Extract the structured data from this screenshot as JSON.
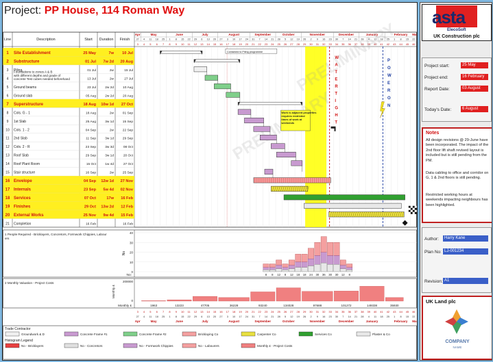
{
  "project": {
    "label": "Project:",
    "name": "PP House, 114 Roman Way"
  },
  "columns": {
    "line": "Line",
    "description": "Description",
    "start": "Start",
    "duration": "Duration",
    "finish": "Finish"
  },
  "months_top": [
    "Apr",
    "May",
    "June",
    "July",
    "August",
    "September",
    "October",
    "November",
    "December",
    "January",
    "February",
    "March"
  ],
  "weeks_top": [
    "3",
    "4",
    "5",
    "6",
    "7",
    "8",
    "9",
    "10",
    "11",
    "12",
    "13",
    "14",
    "15",
    "16",
    "17",
    "18",
    "19",
    "20",
    "21",
    "22",
    "23",
    "24",
    "25",
    "26",
    "27",
    "28",
    "29",
    "30",
    "31",
    "32",
    "33",
    "34",
    "35",
    "36",
    "37",
    "38",
    "39",
    "40",
    "41",
    "42",
    "43",
    "44",
    "45",
    "46"
  ],
  "weeks_bottom": [
    "3",
    "4",
    "5",
    "6",
    "7",
    "8",
    "9",
    "10",
    "11",
    "12",
    "13",
    "14",
    "15",
    "16",
    "17",
    "18",
    "19",
    "20",
    "21",
    "22",
    "23",
    "24",
    "25",
    "26",
    "27",
    "28",
    "29",
    "30",
    "31",
    "32",
    "33",
    "34",
    "35",
    "36",
    "37",
    "38",
    "39",
    "40",
    "41",
    "42",
    "43",
    "44",
    "45",
    "46"
  ],
  "months_bottom": [
    "Apr",
    "May",
    "June",
    "July",
    "August",
    "September",
    "October",
    "November",
    "December",
    "January",
    "February",
    "March"
  ],
  "chart_data": {
    "type": "gantt",
    "tasks": [
      {
        "line": "1",
        "desc": "Site Establishment",
        "start": "25 May",
        "dur": "7w",
        "finish": "10 Jul",
        "summary": true
      },
      {
        "line": "2",
        "desc": "Substructure",
        "start": "01 Jul",
        "dur": "7w 2d",
        "finish": "20 Aug",
        "summary": true
      },
      {
        "line": "3",
        "desc": "Piling",
        "start": "01 Jul",
        "dur": "2w",
        "finish": "15 Jul",
        "summary": false
      },
      {
        "line": "4",
        "desc": "Foundations to zones A & B with different depths and grade of concrete Test cubes needed beforehand",
        "start": "13 Jul",
        "dur": "2w",
        "finish": "27 Jul",
        "summary": false
      },
      {
        "line": "5",
        "desc": "Ground beams",
        "start": "23 Jul",
        "dur": "2w 2d",
        "finish": "10 Aug",
        "summary": false
      },
      {
        "line": "6",
        "desc": "Ground slab",
        "start": "05 Aug",
        "dur": "2w 2d",
        "finish": "20 Aug",
        "summary": false
      },
      {
        "line": "7",
        "desc": "Superstructure",
        "start": "18 Aug",
        "dur": "10w 1d",
        "finish": "27 Oct",
        "summary": true
      },
      {
        "line": "8",
        "desc": "Cols. G - 1",
        "start": "18 Aug",
        "dur": "2w",
        "finish": "01 Sep",
        "summary": false
      },
      {
        "line": "9",
        "desc": "1st Slab",
        "start": "25 Aug",
        "dur": "3w 1d",
        "finish": "15 Sep",
        "summary": false
      },
      {
        "line": "10",
        "desc": "Cols. 1 - 2",
        "start": "04 Sep",
        "dur": "2w",
        "finish": "22 Sep",
        "summary": false
      },
      {
        "line": "11",
        "desc": "2nd Slab",
        "start": "11 Sep",
        "dur": "3w 1d",
        "finish": "29 Sep",
        "summary": false
      },
      {
        "line": "12",
        "desc": "Cols. 2 - R",
        "start": "23 Sep",
        "dur": "3w 3d",
        "finish": "08 Oct",
        "summary": false
      },
      {
        "line": "13",
        "desc": "Roof Slab",
        "start": "29 Sep",
        "dur": "3w 1d",
        "finish": "20 Oct",
        "summary": false
      },
      {
        "line": "14",
        "desc": "Roof Plant Room",
        "start": "15 Oct",
        "dur": "1w 4d",
        "finish": "27 Oct",
        "summary": false
      },
      {
        "line": "15",
        "desc": "Stair structure",
        "start": "16 Sep",
        "dur": "2w",
        "finish": "25 Sep",
        "summary": false
      },
      {
        "line": "16",
        "desc": "Envelope",
        "start": "04 Sep",
        "dur": "12w 1d",
        "finish": "27 Nov",
        "summary": true
      },
      {
        "line": "17",
        "desc": "Internals",
        "start": "23 Sep",
        "dur": "5w 4d",
        "finish": "02 Nov",
        "summary": true
      },
      {
        "line": "18",
        "desc": "Services",
        "start": "07 Oct",
        "dur": "17w",
        "finish": "16 Feb",
        "summary": true
      },
      {
        "line": "19",
        "desc": "Finishes",
        "start": "29 Oct",
        "dur": "13w 2d",
        "finish": "12 Feb",
        "summary": true
      },
      {
        "line": "20",
        "desc": "External Works",
        "start": "25 Nov",
        "dur": "9w 4d",
        "finish": "15 Feb",
        "summary": true
      },
      {
        "line": "21",
        "desc": "Completion",
        "start": "16 Feb",
        "dur": "",
        "finish": "16 Feb",
        "summary": false
      }
    ],
    "labels_on_chart": {
      "piling_note": "Contained to Piling programme",
      "adjacent_note": "Work is adjacent properties requires restricted times of work at weekends",
      "water_tight": "WATER TIGHT",
      "power_on": "POWER ON",
      "watermark": "PRELIMINARY"
    },
    "people_histogram": {
      "title": "1 People Required - Bricklayers, Concretors, Formwork Chippies, Labourers",
      "ylabel": "No",
      "yticks": [
        "40",
        "30",
        "20",
        "10",
        "0"
      ],
      "rowlabel": "No:",
      "values": [
        "8",
        "8",
        "12",
        "8",
        "12",
        "18",
        "18",
        "24",
        "30",
        "36",
        "30",
        "30",
        "12",
        "8"
      ]
    },
    "valuation_histogram": {
      "title": "2 Monthly Valuation - Project Costs",
      "ylabel": "Monthly £",
      "yticks": [
        "200000",
        "0"
      ],
      "rowlabel": "Monthly £",
      "values": [
        "1963",
        "13223",
        "47705",
        "36228",
        "93240",
        "134028",
        "97688",
        "101272",
        "149338",
        "35930"
      ]
    },
    "legend": {
      "trade_title": "Trade Contractor",
      "trade": [
        {
          "name": "Groundwork & D",
          "color": "#f0f0f0"
        },
        {
          "name": "Concrete Frame #1",
          "color": "#c89ad0"
        },
        {
          "name": "Concrete Frame #2",
          "color": "#7fcf8a"
        },
        {
          "name": "Bricklaying Co",
          "color": "#f4a0a0"
        },
        {
          "name": "Carpenter Co",
          "color": "#e8e040"
        },
        {
          "name": "Services Co",
          "color": "#30a030"
        },
        {
          "name": "Plaster & Co",
          "color": "#e8e8e8"
        }
      ],
      "hist_title": "Histogram Legend",
      "hist": [
        {
          "name": "No - Bricklayers",
          "color": "#e84040"
        },
        {
          "name": "No - Concretors",
          "color": "#e0e0e0"
        },
        {
          "name": "No - Formwork Chippies",
          "color": "#c89ad0"
        },
        {
          "name": "No - Labourers",
          "color": "#f4a0a0"
        },
        {
          "name": "Monthly £ - Project Costs",
          "color": "#f08080"
        }
      ]
    }
  },
  "side": {
    "logo_main": "asta",
    "logo_sub": "ElecoSoft",
    "company": "UK Construction plc",
    "project_start_label": "Project start:",
    "project_start": "25 May",
    "project_end_label": "Project end:",
    "project_end": "16 February",
    "report_date_label": "Report Date:",
    "report_date": "03 August",
    "today_label": "Today's Date:",
    "today": "6 August",
    "notes_title": "Notes",
    "notes_1": "All design revisions @ 29-June have been incorporated. The impact of the 2nd floor lift shaft revised layout is included but is still pending from the PM.",
    "notes_2": "Data cabling to office and corridor on G, 1 & 2nd floors is still pending.",
    "notes_3": "Restricted working hours at weekends impacting neighbours has been highlighted.",
    "author_label": "Author:",
    "author": "Harry Kane",
    "plan_label": "Plan No:",
    "plan": "LJ-001234",
    "revision_label": "Revision:",
    "revision": "A1",
    "client": "UK Land plc",
    "client_logo_1": "COMPANY",
    "client_logo_2": "NAME"
  }
}
